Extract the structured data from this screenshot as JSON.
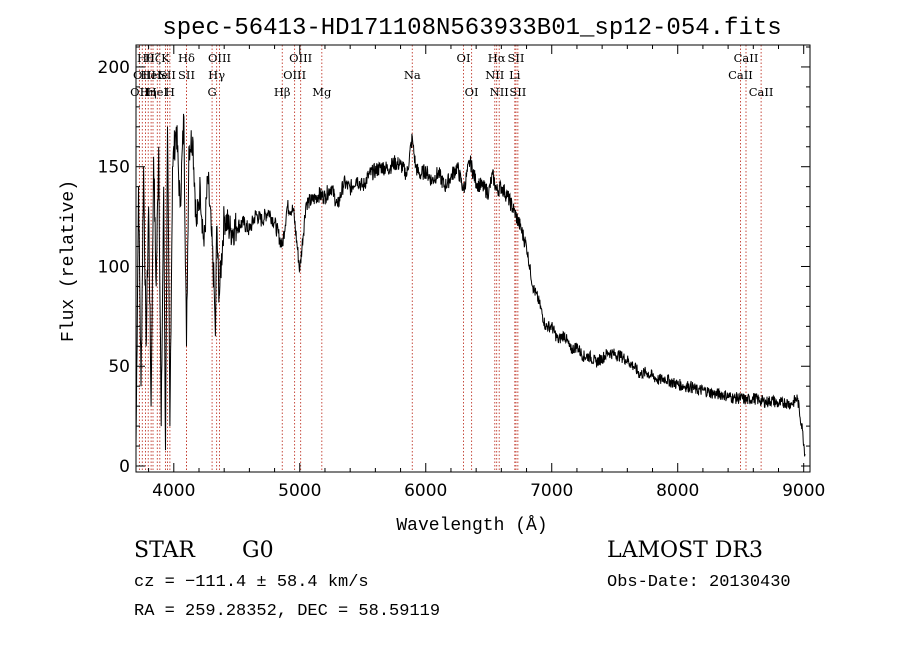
{
  "chart_data": {
    "type": "line",
    "title": "spec-56413-HD171108N563933B01_sp12-054.fits",
    "xlabel": "Wavelength (Å)",
    "ylabel": "Flux (relative)",
    "xlim": [
      3700,
      9050
    ],
    "ylim": [
      -3,
      211
    ],
    "x_ticks": [
      4000,
      5000,
      6000,
      7000,
      8000,
      9000
    ],
    "y_ticks": [
      0,
      50,
      100,
      150,
      200
    ],
    "x_minor_step": 200,
    "y_minor_step": 10,
    "series": [
      {
        "name": "flux",
        "color": "#000000",
        "x": [
          3700,
          3720,
          3740,
          3760,
          3780,
          3800,
          3820,
          3840,
          3860,
          3880,
          3900,
          3920,
          3934,
          3950,
          3969,
          3990,
          4020,
          4050,
          4080,
          4101,
          4120,
          4150,
          4180,
          4210,
          4240,
          4270,
          4300,
          4320,
          4330,
          4340,
          4360,
          4400,
          4450,
          4500,
          4550,
          4600,
          4650,
          4700,
          4750,
          4800,
          4861,
          4900,
          4950,
          5000,
          5050,
          5100,
          5150,
          5200,
          5250,
          5300,
          5350,
          5400,
          5450,
          5500,
          5550,
          5600,
          5650,
          5700,
          5750,
          5800,
          5850,
          5893,
          5900,
          5920,
          5950,
          6000,
          6050,
          6100,
          6150,
          6200,
          6250,
          6300,
          6350,
          6400,
          6450,
          6500,
          6530,
          6563,
          6600,
          6650,
          6700,
          6750,
          6800,
          6850,
          6900,
          6950,
          7000,
          7050,
          7100,
          7150,
          7200,
          7250,
          7300,
          7350,
          7400,
          7450,
          7500,
          7550,
          7600,
          7650,
          7700,
          7750,
          7800,
          7850,
          7900,
          7950,
          8000,
          8050,
          8100,
          8150,
          8200,
          8250,
          8300,
          8350,
          8400,
          8450,
          8500,
          8550,
          8600,
          8650,
          8700,
          8750,
          8800,
          8850,
          8900,
          8950,
          8990,
          9010
        ],
        "y": [
          10,
          140,
          40,
          150,
          60,
          130,
          30,
          155,
          90,
          160,
          20,
          140,
          8,
          170,
          20,
          150,
          170,
          130,
          175,
          60,
          160,
          165,
          120,
          140,
          110,
          145,
          115,
          90,
          65,
          120,
          85,
          125,
          118,
          120,
          122,
          118,
          126,
          123,
          128,
          122,
          110,
          130,
          128,
          98,
          132,
          133,
          136,
          135,
          140,
          130,
          142,
          139,
          144,
          140,
          146,
          148,
          150,
          149,
          152,
          151,
          146,
          165,
          160,
          150,
          146,
          148,
          143,
          147,
          140,
          145,
          150,
          138,
          153,
          142,
          140,
          137,
          146,
          138,
          140,
          135,
          128,
          120,
          110,
          90,
          82,
          70,
          70,
          63,
          66,
          58,
          60,
          55,
          55,
          52,
          54,
          57,
          56,
          55,
          53,
          50,
          46,
          47,
          45,
          43,
          44,
          42,
          41,
          40,
          40,
          38,
          38,
          37,
          36,
          36,
          35,
          34,
          34,
          33,
          34,
          33,
          32,
          33,
          31,
          32,
          31,
          34,
          18,
          6
        ]
      }
    ],
    "lines": [
      {
        "w": 3727,
        "row": 2,
        "label": "OII"
      },
      {
        "w": 3750,
        "row": 1,
        "label": "OII"
      },
      {
        "w": 3775,
        "row": 0,
        "label": "Hθ"
      },
      {
        "w": 3797,
        "row": 2,
        "label": "Hη"
      },
      {
        "w": 3820,
        "row": 1,
        "label": "HeI"
      },
      {
        "w": 3835,
        "row": 0,
        "label": "Hζ"
      },
      {
        "w": 3869,
        "row": 2,
        "label": "HeI"
      },
      {
        "w": 3889,
        "row": 1,
        "label": "He"
      },
      {
        "w": 3934,
        "row": 0,
        "label": "K"
      },
      {
        "w": 3950,
        "row": 1,
        "label": "SII"
      },
      {
        "w": 3969,
        "row": 2,
        "label": "H"
      },
      {
        "w": 4101,
        "row": 0,
        "label": "Hδ"
      },
      {
        "w": 4101,
        "row": 1,
        "label": "SII"
      },
      {
        "w": 4304,
        "row": 2,
        "label": "G"
      },
      {
        "w": 4340,
        "row": 1,
        "label": "Hγ"
      },
      {
        "w": 4363,
        "row": 0,
        "label": "OIII"
      },
      {
        "w": 4861,
        "row": 2,
        "label": "Hβ"
      },
      {
        "w": 4959,
        "row": 1,
        "label": "OIII"
      },
      {
        "w": 5007,
        "row": 0,
        "label": "OIII"
      },
      {
        "w": 5175,
        "row": 2,
        "label": "Mg"
      },
      {
        "w": 5893,
        "row": 1,
        "label": "Na"
      },
      {
        "w": 6300,
        "row": 0,
        "label": "OI"
      },
      {
        "w": 6364,
        "row": 2,
        "label": "OI"
      },
      {
        "w": 6548,
        "row": 1,
        "label": "NII"
      },
      {
        "w": 6563,
        "row": 0,
        "label": "Hα"
      },
      {
        "w": 6583,
        "row": 2,
        "label": "NII"
      },
      {
        "w": 6707,
        "row": 1,
        "label": "Li"
      },
      {
        "w": 6716,
        "row": 0,
        "label": "SII"
      },
      {
        "w": 6731,
        "row": 2,
        "label": "SII"
      },
      {
        "w": 8498,
        "row": 1,
        "label": "CaII"
      },
      {
        "w": 8542,
        "row": 0,
        "label": "CaII"
      },
      {
        "w": 8662,
        "row": 2,
        "label": "CaII"
      }
    ]
  },
  "info": {
    "class_label": "STAR",
    "subclass": "G0",
    "survey": "LAMOST DR3",
    "cz": "cz = −111.4 ± 58.4 km/s",
    "obs_date": "Obs-Date: 20130430",
    "coords": "RA = 259.28352, DEC =  58.59119"
  },
  "colors": {
    "line_marker": "#c0392b",
    "spectrum": "#000000",
    "axes": "#000000"
  }
}
